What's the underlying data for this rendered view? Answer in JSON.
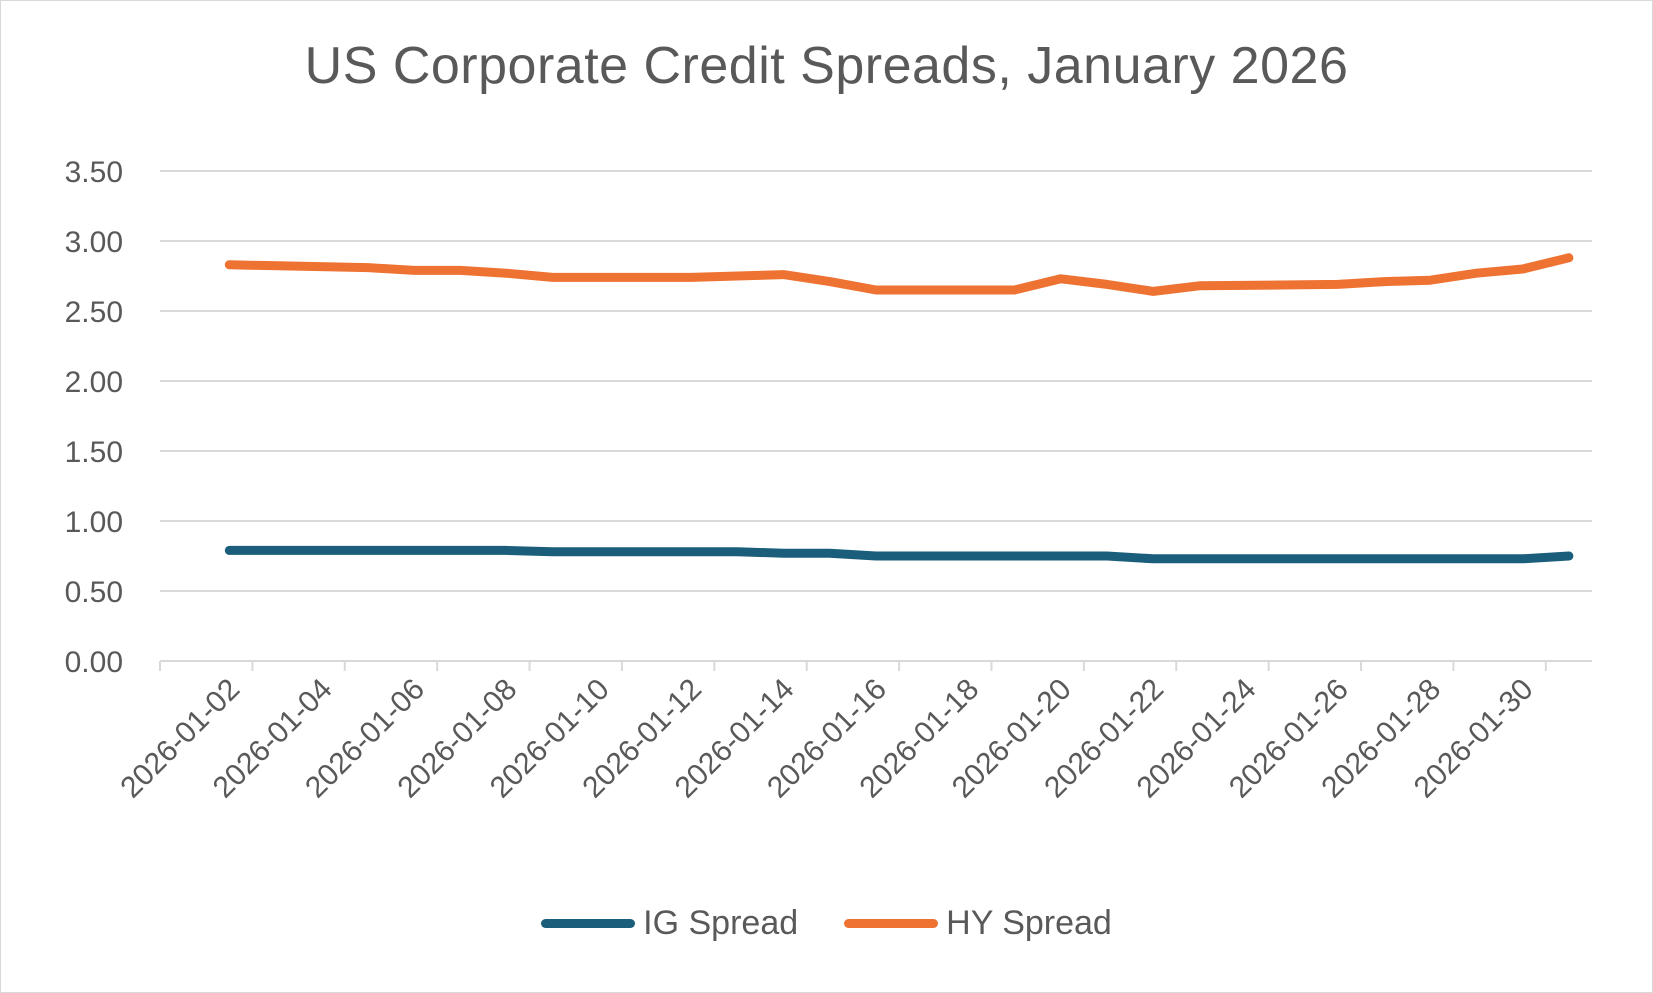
{
  "chart_data": {
    "type": "line",
    "title": "US Corporate Credit Spreads, January 2026",
    "xlabel": "",
    "ylabel": "",
    "x": [
      "2026-01-02",
      "2026-01-05",
      "2026-01-06",
      "2026-01-07",
      "2026-01-08",
      "2026-01-09",
      "2026-01-12",
      "2026-01-13",
      "2026-01-14",
      "2026-01-15",
      "2026-01-16",
      "2026-01-19",
      "2026-01-20",
      "2026-01-21",
      "2026-01-22",
      "2026-01-23",
      "2026-01-26",
      "2026-01-27",
      "2026-01-28",
      "2026-01-29",
      "2026-01-30",
      "2026-01-31"
    ],
    "x_tick_labels": [
      "2026-01-02",
      "2026-01-04",
      "2026-01-06",
      "2026-01-08",
      "2026-01-10",
      "2026-01-12",
      "2026-01-14",
      "2026-01-16",
      "2026-01-18",
      "2026-01-20",
      "2026-01-22",
      "2026-01-24",
      "2026-01-26",
      "2026-01-28",
      "2026-01-30"
    ],
    "x_range": [
      "2026-01-01",
      "2026-01-31"
    ],
    "ylim": [
      0,
      3.5
    ],
    "y_ticks": [
      "0.00",
      "0.50",
      "1.00",
      "1.50",
      "2.00",
      "2.50",
      "3.00",
      "3.50"
    ],
    "grid": true,
    "legend_position": "bottom",
    "series": [
      {
        "name": "IG Spread",
        "color": "#1b5e7b",
        "values": [
          0.79,
          0.79,
          0.79,
          0.79,
          0.79,
          0.78,
          0.78,
          0.78,
          0.77,
          0.77,
          0.75,
          0.75,
          0.75,
          0.75,
          0.73,
          0.73,
          0.73,
          0.73,
          0.73,
          0.73,
          0.73,
          0.75
        ]
      },
      {
        "name": "HY Spread",
        "color": "#ee7231",
        "values": [
          2.83,
          2.81,
          2.79,
          2.79,
          2.77,
          2.74,
          2.74,
          2.75,
          2.76,
          2.71,
          2.65,
          2.65,
          2.73,
          2.69,
          2.64,
          2.68,
          2.69,
          2.71,
          2.72,
          2.77,
          2.8,
          2.88
        ]
      }
    ]
  }
}
